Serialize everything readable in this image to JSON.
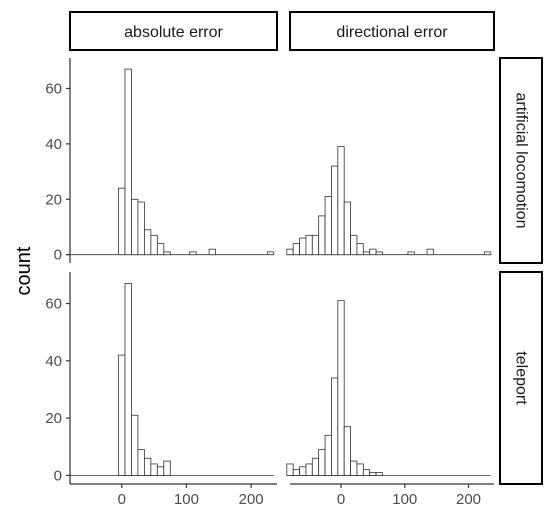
{
  "chart_data": {
    "type": "bar",
    "subtype": "faceted-histogram",
    "title": "",
    "xlabel": "",
    "ylabel": "count",
    "grid": false,
    "legend": "none",
    "colors": {
      "bar_fill": "#ffffff",
      "bar_stroke": "#333333",
      "strip_border": "#000000",
      "axis": "#333333"
    },
    "xlim": [
      -80,
      240
    ],
    "ylim": [
      -3,
      71
    ],
    "x_ticks": [
      0,
      100,
      200
    ],
    "y_ticks": [
      0,
      20,
      40,
      60
    ],
    "bin_width": 10,
    "columns": [
      "absolute error",
      "directional error"
    ],
    "rows": [
      "artificial locomotion",
      "teleport"
    ],
    "panels": [
      {
        "column": "absolute error",
        "row": "artificial locomotion",
        "bin_centers": [
          -80,
          -70,
          -60,
          -50,
          -40,
          -30,
          -20,
          -10,
          0,
          10,
          20,
          30,
          40,
          50,
          60,
          70,
          80,
          90,
          100,
          110,
          120,
          130,
          140,
          150,
          160,
          170,
          180,
          190,
          200,
          210,
          220,
          230
        ],
        "counts": [
          0,
          0,
          0,
          0,
          0,
          0,
          0,
          0,
          24,
          67,
          20,
          19,
          9,
          7,
          4,
          1,
          0,
          0,
          0,
          1,
          0,
          0,
          2,
          0,
          0,
          0,
          0,
          0,
          0,
          0,
          0,
          1
        ]
      },
      {
        "column": "directional error",
        "row": "artificial locomotion",
        "bin_centers": [
          -80,
          -70,
          -60,
          -50,
          -40,
          -30,
          -20,
          -10,
          0,
          10,
          20,
          30,
          40,
          50,
          60,
          70,
          80,
          90,
          100,
          110,
          120,
          130,
          140,
          150,
          160,
          170,
          180,
          190,
          200,
          210,
          220,
          230
        ],
        "counts": [
          2,
          4,
          6,
          7,
          7,
          14,
          21,
          32,
          39,
          19,
          7,
          4,
          1,
          2,
          1,
          0,
          0,
          0,
          0,
          1,
          0,
          0,
          2,
          0,
          0,
          0,
          0,
          0,
          0,
          0,
          0,
          1
        ]
      },
      {
        "column": "absolute error",
        "row": "teleport",
        "bin_centers": [
          -80,
          -70,
          -60,
          -50,
          -40,
          -30,
          -20,
          -10,
          0,
          10,
          20,
          30,
          40,
          50,
          60,
          70,
          80,
          90,
          100,
          110,
          120,
          130,
          140,
          150,
          160,
          170,
          180,
          190,
          200,
          210,
          220,
          230
        ],
        "counts": [
          0,
          0,
          0,
          0,
          0,
          0,
          0,
          0,
          42,
          67,
          21,
          9,
          6,
          4,
          3,
          5,
          0,
          0,
          0,
          0,
          0,
          0,
          0,
          0,
          0,
          0,
          0,
          0,
          0,
          0,
          0,
          0
        ]
      },
      {
        "column": "directional error",
        "row": "teleport",
        "bin_centers": [
          -80,
          -70,
          -60,
          -50,
          -40,
          -30,
          -20,
          -10,
          0,
          10,
          20,
          30,
          40,
          50,
          60,
          70,
          80,
          90,
          100,
          110,
          120,
          130,
          140,
          150,
          160,
          170,
          180,
          190,
          200,
          210,
          220,
          230
        ],
        "counts": [
          4,
          2,
          3,
          4,
          6,
          9,
          14,
          34,
          61,
          17,
          5,
          4,
          2,
          1,
          1,
          0,
          0,
          0,
          0,
          0,
          0,
          0,
          0,
          0,
          0,
          0,
          0,
          0,
          0,
          0,
          0,
          0
        ]
      }
    ]
  }
}
